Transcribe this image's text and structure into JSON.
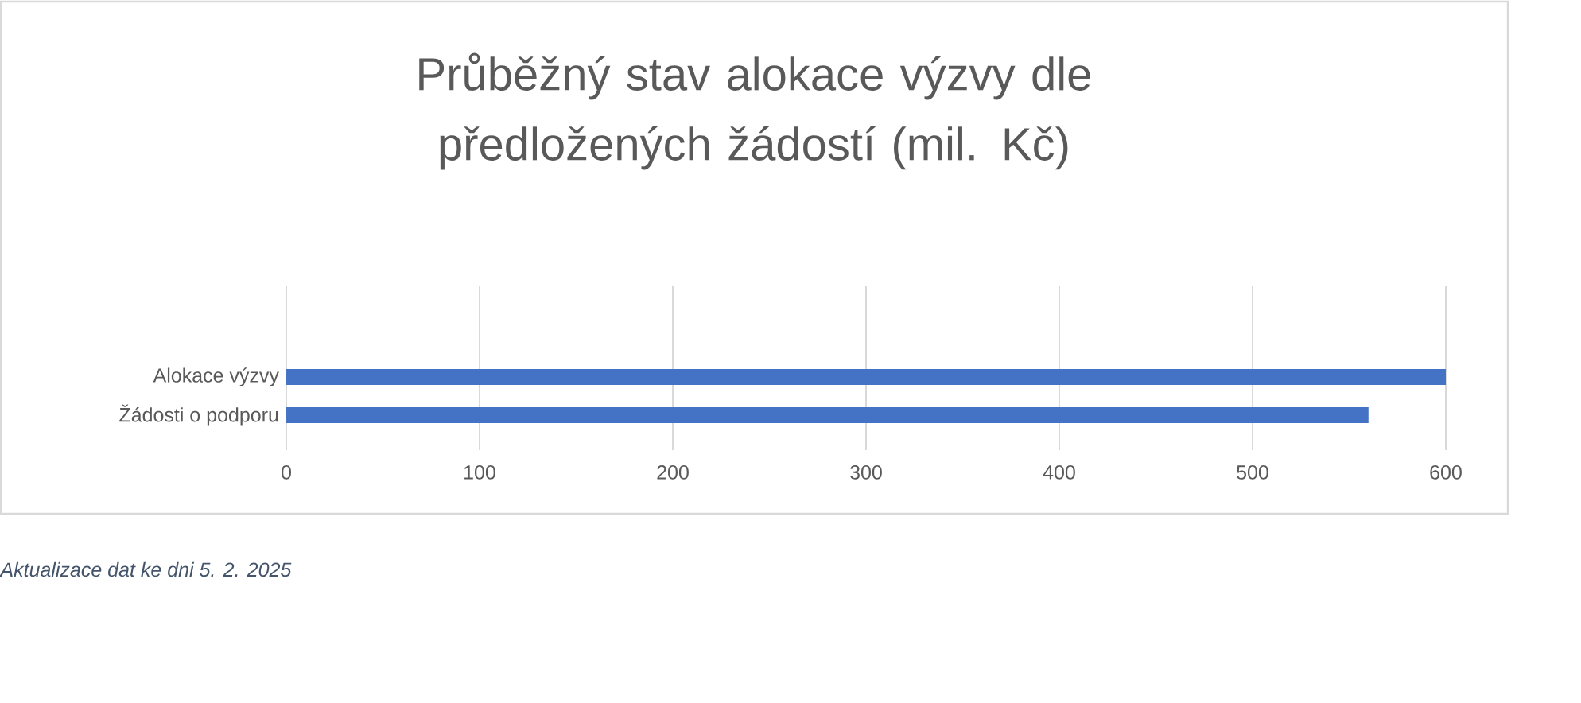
{
  "chart_data": {
    "type": "bar",
    "orientation": "horizontal",
    "title": "Průběžný stav alokace výzvy dle předložených žádostí (mil. Kč)",
    "categories": [
      "Alokace výzvy",
      "Žádosti o podporu"
    ],
    "values": [
      600,
      560
    ],
    "color": "#4472c4",
    "xlim": [
      0,
      600
    ],
    "xticks": [
      0,
      100,
      200,
      300,
      400,
      500,
      600
    ],
    "grid": "x",
    "annotations": [
      "Aktualizace dat ke dni 5. 2. 2025"
    ]
  }
}
